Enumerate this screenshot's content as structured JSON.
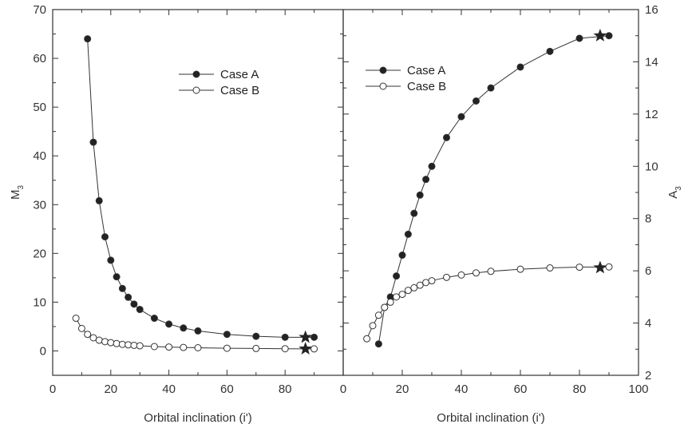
{
  "chart_data": [
    {
      "type": "scatter",
      "xlabel": "Orbital inclination (i')",
      "ylabel": "M",
      "ylabel_subscript": "3",
      "xlim": [
        0,
        100
      ],
      "ylim": [
        -5,
        70
      ],
      "x_ticks": [
        0,
        20,
        40,
        60,
        80
      ],
      "y_ticks": [
        0,
        10,
        20,
        30,
        40,
        50,
        60,
        70
      ],
      "legend_position": "top-center",
      "series": [
        {
          "name": "Case A",
          "marker": "filled-circle",
          "x": [
            12,
            14,
            16,
            18,
            20,
            22,
            24,
            26,
            28,
            30,
            35,
            40,
            45,
            50,
            60,
            70,
            80,
            90
          ],
          "y": [
            64,
            42.8,
            30.8,
            23.4,
            18.6,
            15.2,
            12.8,
            11,
            9.6,
            8.5,
            6.7,
            5.5,
            4.7,
            4.1,
            3.4,
            3.0,
            2.8,
            2.8
          ]
        },
        {
          "name": "Case B",
          "marker": "open-circle",
          "x": [
            8,
            10,
            12,
            14,
            16,
            18,
            20,
            22,
            24,
            26,
            28,
            30,
            35,
            40,
            45,
            50,
            60,
            70,
            80,
            90
          ],
          "y": [
            6.7,
            4.6,
            3.4,
            2.7,
            2.2,
            1.9,
            1.7,
            1.5,
            1.35,
            1.25,
            1.15,
            1.05,
            0.9,
            0.8,
            0.72,
            0.65,
            0.55,
            0.5,
            0.45,
            0.42
          ]
        }
      ],
      "star_markers": [
        {
          "series": "Case A",
          "x": 87,
          "y": 2.8
        },
        {
          "series": "Case B",
          "x": 87,
          "y": 0.42
        }
      ]
    },
    {
      "type": "scatter",
      "xlabel": "Orbital inclination (i')",
      "ylabel": "A",
      "ylabel_subscript": "3",
      "xlim": [
        0,
        100
      ],
      "ylim": [
        2,
        16
      ],
      "x_ticks": [
        0,
        20,
        40,
        60,
        80,
        100
      ],
      "y_ticks": [
        2,
        4,
        6,
        8,
        10,
        12,
        14,
        16
      ],
      "legend_position": "top-left",
      "series": [
        {
          "name": "Case A",
          "marker": "filled-circle",
          "x": [
            12,
            14,
            16,
            18,
            20,
            22,
            24,
            26,
            28,
            30,
            35,
            40,
            45,
            50,
            60,
            70,
            80,
            90
          ],
          "y": [
            3.2,
            4.6,
            5.0,
            5.8,
            6.6,
            7.4,
            8.2,
            8.9,
            9.5,
            10.0,
            11.1,
            11.9,
            12.5,
            13.0,
            13.8,
            14.4,
            14.9,
            15.0
          ]
        },
        {
          "name": "Case B",
          "marker": "open-circle",
          "x": [
            8,
            10,
            12,
            14,
            16,
            18,
            20,
            22,
            24,
            26,
            28,
            30,
            35,
            40,
            45,
            50,
            60,
            70,
            80,
            90
          ],
          "y": [
            3.4,
            3.9,
            4.3,
            4.6,
            4.8,
            5.0,
            5.1,
            5.25,
            5.35,
            5.45,
            5.55,
            5.62,
            5.75,
            5.84,
            5.92,
            5.98,
            6.06,
            6.11,
            6.14,
            6.15
          ]
        }
      ],
      "star_markers": [
        {
          "series": "Case A",
          "x": 87,
          "y": 15.0
        },
        {
          "series": "Case B",
          "x": 87,
          "y": 6.12
        }
      ]
    }
  ],
  "colors": {
    "frame": "#333333",
    "line": "#333333",
    "marker_fill": "#222222",
    "marker_open": "#ffffff"
  }
}
